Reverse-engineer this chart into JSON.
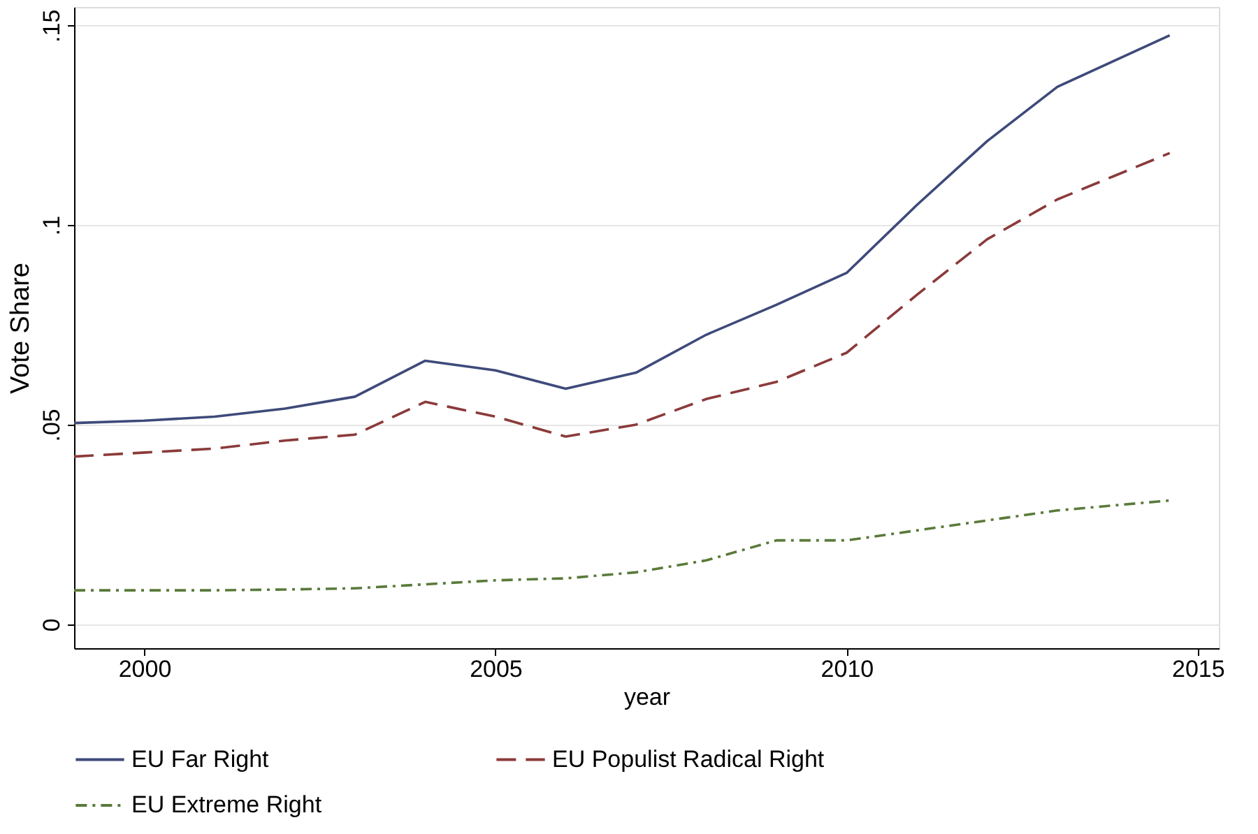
{
  "chart_data": {
    "type": "line",
    "xlabel": "year",
    "ylabel": "Vote Share",
    "x": [
      1999,
      2000,
      2001,
      2002,
      2003,
      2004,
      2005,
      2006,
      2007,
      2008,
      2009,
      2010,
      2011,
      2012,
      2013,
      2014.6
    ],
    "series": [
      {
        "name": "EU Far Right",
        "color": "#3e4a7a",
        "line_style": "solid",
        "values": [
          0.0504,
          0.051,
          0.052,
          0.054,
          0.057,
          0.066,
          0.0636,
          0.059,
          0.063,
          0.0725,
          0.08,
          0.088,
          0.105,
          0.121,
          0.1346,
          0.1475
        ]
      },
      {
        "name": "EU Populist Radical Right",
        "color": "#8b3a3a",
        "line_style": "dashed",
        "values": [
          0.042,
          0.043,
          0.044,
          0.046,
          0.0475,
          0.0557,
          0.052,
          0.047,
          0.05,
          0.0564,
          0.0607,
          0.068,
          0.0825,
          0.0964,
          0.1064,
          0.118
        ]
      },
      {
        "name": "EU Extreme Right",
        "color": "#5a7a3a",
        "line_style": "dashdot",
        "values": [
          0.0085,
          0.0085,
          0.0085,
          0.0087,
          0.009,
          0.01,
          0.011,
          0.0115,
          0.013,
          0.016,
          0.021,
          0.021,
          0.0235,
          0.026,
          0.0285,
          0.031
        ]
      }
    ],
    "xlim": [
      1999,
      2015.3
    ],
    "xticks": [
      2000,
      2005,
      2010,
      2015
    ],
    "ylim": [
      -0.006,
      0.1546
    ],
    "yticks": [
      0,
      {
        "value": 0.05,
        "label": ".05"
      },
      {
        "value": 0.1,
        "label": ".1"
      },
      {
        "value": 0.15,
        "label": ".15"
      }
    ],
    "grid": "y",
    "legend": "bottom",
    "marker": "none"
  }
}
